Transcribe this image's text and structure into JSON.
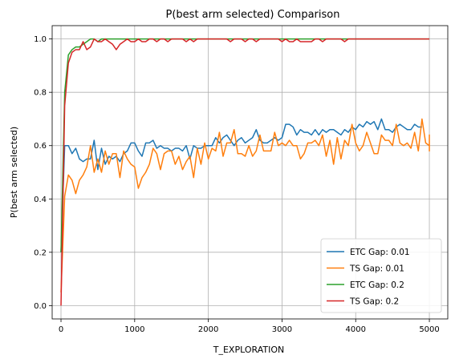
{
  "chart_data": {
    "type": "line",
    "title": "P(best arm selected) Comparison",
    "xlabel": "T_EXPLORATION",
    "ylabel": "P(best arm selected)",
    "xlim": [
      -120,
      5250
    ],
    "ylim": [
      -0.05,
      1.05
    ],
    "xticks": [
      0,
      1000,
      2000,
      3000,
      4000,
      5000
    ],
    "yticks": [
      0.0,
      0.2,
      0.4,
      0.6,
      0.8,
      1.0
    ],
    "grid": true,
    "legend_position": "bottom-right",
    "x_step": 50,
    "series": [
      {
        "name": "ETC Gap: 0.01",
        "color": "#1f77b4",
        "values": [
          0.2,
          0.6,
          0.6,
          0.57,
          0.59,
          0.55,
          0.54,
          0.55,
          0.55,
          0.62,
          0.51,
          0.59,
          0.53,
          0.56,
          0.55,
          0.56,
          0.54,
          0.57,
          0.58,
          0.61,
          0.61,
          0.58,
          0.56,
          0.61,
          0.61,
          0.62,
          0.59,
          0.6,
          0.59,
          0.59,
          0.58,
          0.59,
          0.59,
          0.58,
          0.6,
          0.55,
          0.6,
          0.59,
          0.59,
          0.6,
          0.6,
          0.6,
          0.63,
          0.61,
          0.63,
          0.64,
          0.62,
          0.6,
          0.62,
          0.63,
          0.61,
          0.62,
          0.63,
          0.66,
          0.62,
          0.61,
          0.61,
          0.62,
          0.63,
          0.62,
          0.63,
          0.68,
          0.68,
          0.67,
          0.64,
          0.66,
          0.65,
          0.65,
          0.64,
          0.66,
          0.64,
          0.66,
          0.65,
          0.66,
          0.66,
          0.65,
          0.64,
          0.66,
          0.65,
          0.67,
          0.66,
          0.68,
          0.67,
          0.69,
          0.68,
          0.69,
          0.66,
          0.7,
          0.66,
          0.66,
          0.65,
          0.67,
          0.68,
          0.67,
          0.66,
          0.66,
          0.68,
          0.67,
          0.67
        ]
      },
      {
        "name": "TS Gap: 0.01",
        "color": "#ff7f0e",
        "values": [
          0.05,
          0.41,
          0.49,
          0.47,
          0.42,
          0.47,
          0.49,
          0.52,
          0.6,
          0.5,
          0.55,
          0.5,
          0.58,
          0.53,
          0.57,
          0.57,
          0.48,
          0.58,
          0.55,
          0.53,
          0.52,
          0.44,
          0.48,
          0.5,
          0.53,
          0.59,
          0.57,
          0.51,
          0.57,
          0.58,
          0.58,
          0.53,
          0.56,
          0.51,
          0.54,
          0.56,
          0.48,
          0.59,
          0.53,
          0.61,
          0.55,
          0.59,
          0.58,
          0.65,
          0.56,
          0.61,
          0.61,
          0.66,
          0.57,
          0.57,
          0.56,
          0.6,
          0.56,
          0.58,
          0.64,
          0.58,
          0.58,
          0.58,
          0.65,
          0.6,
          0.61,
          0.6,
          0.62,
          0.6,
          0.6,
          0.55,
          0.57,
          0.61,
          0.61,
          0.62,
          0.6,
          0.64,
          0.56,
          0.62,
          0.53,
          0.63,
          0.55,
          0.62,
          0.6,
          0.68,
          0.61,
          0.58,
          0.6,
          0.65,
          0.61,
          0.57,
          0.57,
          0.64,
          0.62,
          0.62,
          0.6,
          0.68,
          0.61,
          0.6,
          0.61,
          0.59,
          0.65,
          0.58,
          0.7,
          0.61,
          0.6,
          0.58,
          0.63,
          0.62,
          0.64,
          0.6,
          0.64,
          0.64
        ]
      },
      {
        "name": "ETC Gap: 0.2",
        "color": "#2ca02c",
        "values": [
          0.2,
          0.8,
          0.94,
          0.96,
          0.97,
          0.97,
          0.98,
          0.99,
          1.0,
          1.0,
          0.99,
          1.0,
          1.0,
          1.0,
          1.0,
          1.0,
          1.0,
          1.0,
          1.0,
          1.0,
          1.0,
          1.0,
          1.0,
          1.0,
          1.0,
          1.0,
          1.0,
          1.0,
          1.0,
          1.0,
          1.0,
          1.0,
          1.0,
          1.0,
          1.0,
          1.0,
          1.0,
          1.0,
          1.0,
          1.0,
          1.0,
          1.0,
          1.0,
          1.0,
          1.0,
          1.0,
          1.0,
          1.0,
          1.0,
          1.0,
          1.0,
          1.0,
          1.0,
          1.0,
          1.0,
          1.0,
          1.0,
          1.0,
          1.0,
          1.0,
          1.0,
          1.0,
          1.0,
          1.0,
          1.0,
          1.0,
          1.0,
          1.0,
          1.0,
          1.0,
          1.0,
          1.0,
          1.0,
          1.0,
          1.0,
          1.0,
          1.0,
          1.0,
          1.0,
          1.0,
          1.0,
          1.0,
          1.0,
          1.0,
          1.0,
          1.0,
          1.0,
          1.0,
          1.0,
          1.0,
          1.0,
          1.0,
          1.0,
          1.0,
          1.0,
          1.0,
          1.0,
          1.0,
          1.0,
          1.0,
          1.0
        ]
      },
      {
        "name": "TS Gap: 0.2",
        "color": "#d62728",
        "values": [
          0.0,
          0.75,
          0.91,
          0.95,
          0.96,
          0.96,
          0.99,
          0.96,
          0.97,
          1.0,
          0.99,
          0.99,
          1.0,
          0.99,
          0.98,
          0.96,
          0.98,
          0.99,
          1.0,
          0.99,
          0.99,
          1.0,
          0.99,
          0.99,
          1.0,
          1.0,
          0.99,
          1.0,
          1.0,
          0.99,
          1.0,
          1.0,
          1.0,
          1.0,
          0.99,
          1.0,
          0.99,
          1.0,
          1.0,
          1.0,
          1.0,
          1.0,
          1.0,
          1.0,
          1.0,
          1.0,
          0.99,
          1.0,
          1.0,
          1.0,
          0.99,
          1.0,
          1.0,
          0.99,
          1.0,
          1.0,
          1.0,
          1.0,
          1.0,
          1.0,
          0.99,
          1.0,
          0.99,
          0.99,
          1.0,
          0.99,
          0.99,
          0.99,
          0.99,
          1.0,
          1.0,
          0.99,
          1.0,
          1.0,
          1.0,
          1.0,
          1.0,
          0.99,
          1.0,
          1.0,
          1.0,
          1.0,
          1.0,
          1.0,
          1.0,
          1.0,
          1.0,
          1.0,
          1.0,
          1.0,
          1.0,
          1.0,
          1.0,
          1.0,
          1.0,
          1.0,
          1.0,
          1.0,
          1.0,
          1.0,
          1.0
        ]
      }
    ]
  }
}
